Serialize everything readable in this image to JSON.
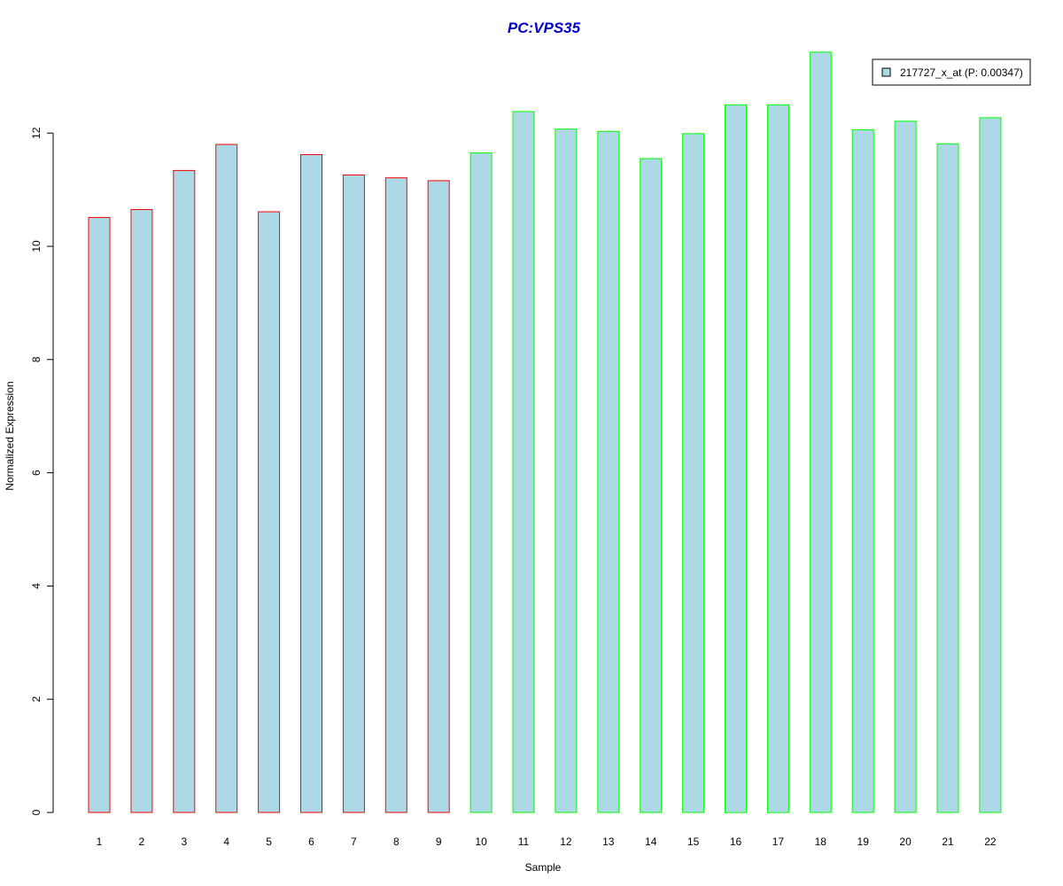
{
  "chart_data": {
    "type": "bar",
    "title": "PC:VPS35",
    "xlabel": "Sample",
    "ylabel": "Normalized Expression",
    "categories": [
      "1",
      "2",
      "3",
      "4",
      "5",
      "6",
      "7",
      "8",
      "9",
      "10",
      "11",
      "12",
      "13",
      "14",
      "15",
      "16",
      "17",
      "18",
      "19",
      "20",
      "21",
      "22"
    ],
    "values": [
      10.51,
      10.65,
      11.34,
      11.8,
      10.61,
      11.62,
      11.26,
      11.21,
      11.16,
      11.65,
      12.38,
      12.07,
      12.03,
      11.55,
      11.99,
      12.5,
      12.5,
      13.43,
      12.06,
      12.21,
      11.81,
      12.27
    ],
    "groups": [
      "a",
      "a",
      "a",
      "a",
      "a",
      "a",
      "a",
      "a",
      "a",
      "b",
      "b",
      "b",
      "b",
      "b",
      "b",
      "b",
      "b",
      "b",
      "b",
      "b",
      "b",
      "b"
    ],
    "yticks": [
      0,
      2,
      4,
      6,
      8,
      10,
      12
    ],
    "ylim": [
      0,
      13.43
    ],
    "legend": {
      "label": "217727_x_at (P: 0.00347)",
      "position": "top-right"
    },
    "colors": {
      "bar_fill": "#ADD8E6",
      "group_a_border": "#FF0000",
      "group_b_border": "#00FF00",
      "title": "#0000CD"
    }
  }
}
